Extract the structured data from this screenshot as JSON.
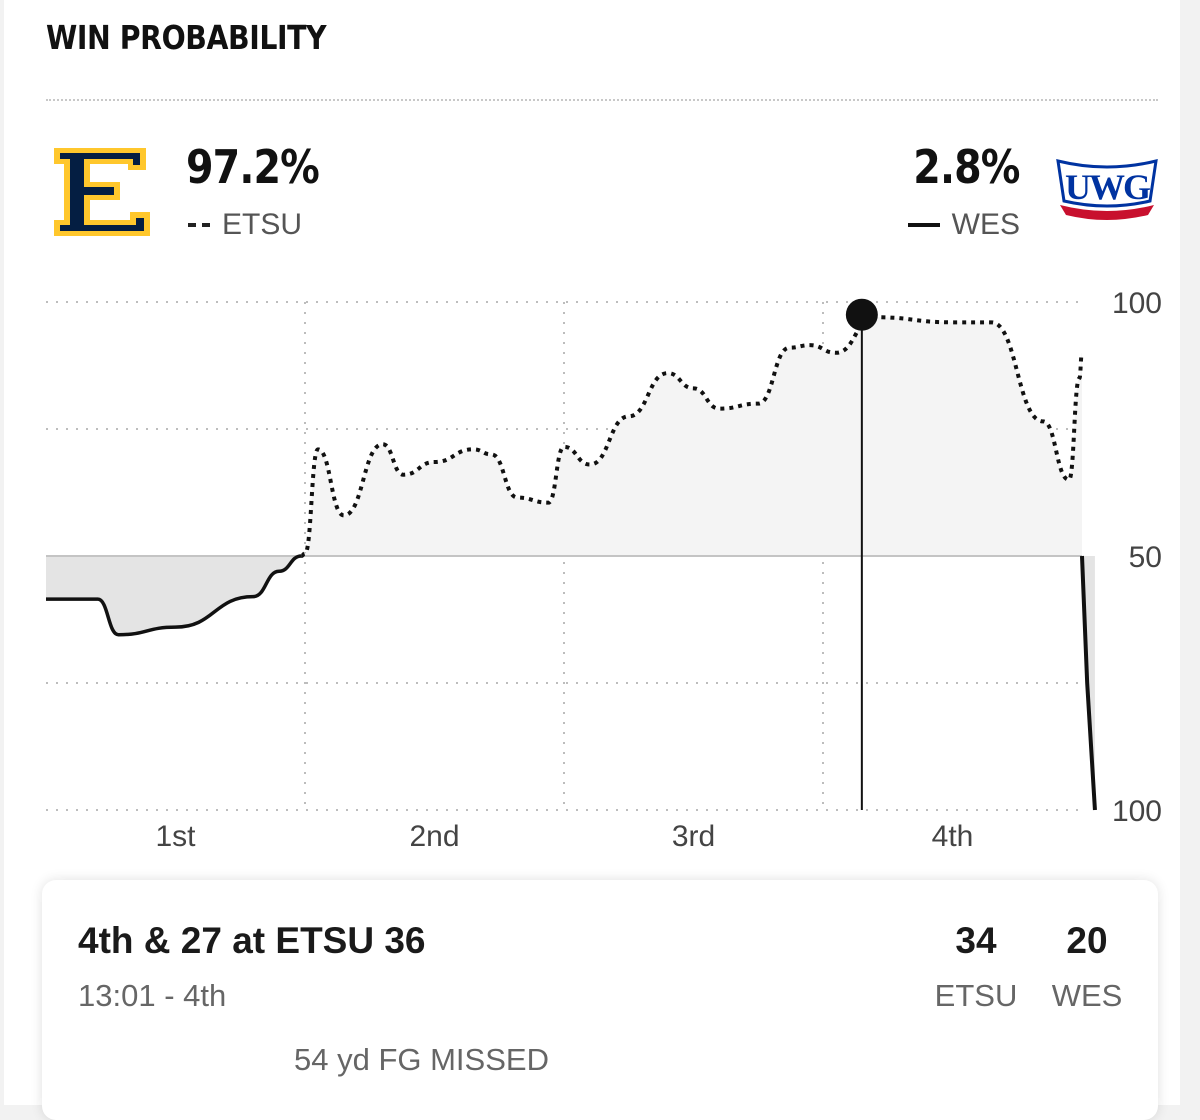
{
  "header": {
    "title": "WIN PROBABILITY"
  },
  "teams": {
    "home": {
      "pct": "97.2%",
      "abbr": "ETSU",
      "logo": "etsu-logo",
      "line_style": "dashed",
      "colors": {
        "navy": "#041e42",
        "gold": "#ffc72c"
      }
    },
    "away": {
      "pct": "2.8%",
      "abbr": "WES",
      "logo": "uwg-logo",
      "logo_text": "UWG",
      "line_style": "solid",
      "colors": {
        "blue": "#0033a1",
        "red": "#c8102e"
      }
    }
  },
  "chart_data": {
    "type": "line",
    "title": "WIN PROBABILITY",
    "y_tick_labels": [
      "100",
      "50",
      "100"
    ],
    "y_range": [
      -100,
      100
    ],
    "y_meaning": "positive = ETSU win probability above 50%, negative = WES win probability above 50%",
    "x_range": [
      0,
      4
    ],
    "x_tick_labels": [
      "1st",
      "2nd",
      "3rd",
      "4th"
    ],
    "series": [
      {
        "name": "ETSU",
        "style": "dashed",
        "fill": "#f4f4f4",
        "x": [
          0.0,
          0.2,
          0.28,
          0.5,
          0.8,
          0.9,
          1.0,
          1.05,
          1.15,
          1.3,
          1.38,
          1.5,
          1.65,
          1.72,
          1.82,
          1.94,
          2.0,
          2.1,
          2.25,
          2.4,
          2.5,
          2.6,
          2.75,
          2.87,
          2.95,
          3.05,
          3.2,
          3.5,
          3.65,
          3.85,
          3.95,
          3.99,
          4.0
        ],
        "y": [
          -17,
          -17,
          -31,
          -28,
          -16,
          -6,
          1,
          42,
          16,
          44,
          32,
          37,
          42,
          40,
          23,
          21,
          43,
          36,
          55,
          72,
          66,
          58,
          60,
          82,
          83,
          80,
          94,
          92,
          92,
          53,
          30,
          70,
          80
        ]
      },
      {
        "name": "WES",
        "style": "solid",
        "fill": "#e4e4e4",
        "x": [
          4.0,
          4.02,
          4.05
        ],
        "y": [
          0,
          -50,
          -100
        ]
      }
    ],
    "marker": {
      "x": 3.15,
      "y": 95
    },
    "cursor_x": 3.15,
    "grid": true,
    "legend": "top"
  },
  "play": {
    "down_distance": "4th & 27 at ETSU 36",
    "clock": "13:01 - 4th",
    "description": "54 yd FG MISSED",
    "home_score": "34",
    "away_score": "20",
    "home_abbr": "ETSU",
    "away_abbr": "WES"
  }
}
